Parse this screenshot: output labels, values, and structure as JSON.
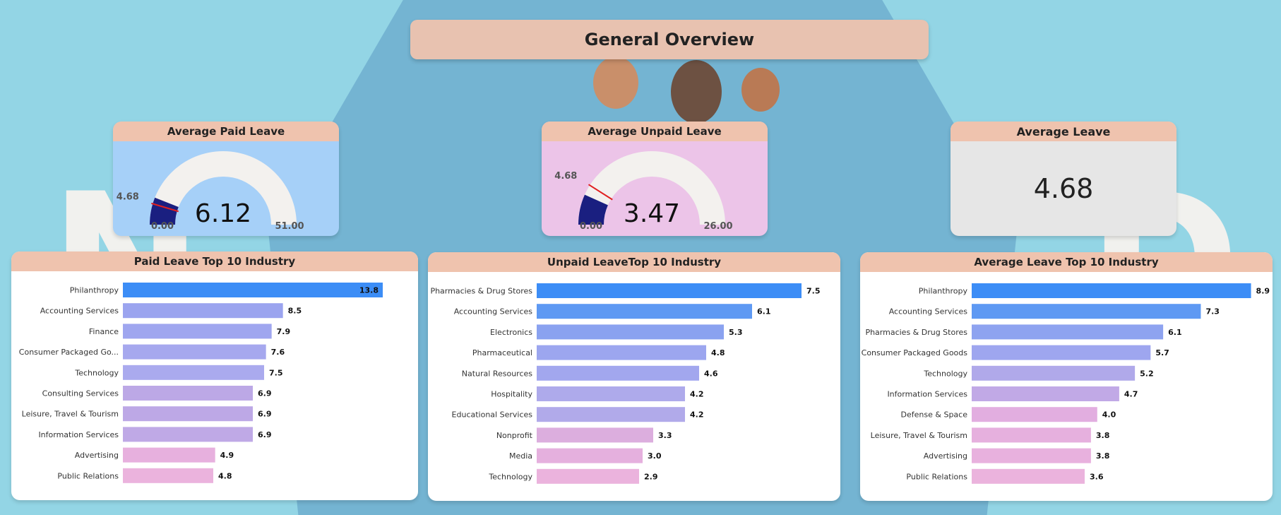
{
  "title": "General Overview",
  "colors": {
    "page_bg": "#93d5e5",
    "header": "#efc3ae",
    "gauge_fill": "#1a1f80",
    "gauge_track": "#f3f1ee",
    "target_line": "#e02020",
    "paid_card_bg": "#a6d0f8",
    "unpaid_card_bg": "#ecc4e8",
    "avg_card_bg": "#e6e6e6"
  },
  "gauges": [
    {
      "id": "paid",
      "title": "Average Paid Leave",
      "value": 6.12,
      "value_label": "6.12",
      "min": 0,
      "max": 51,
      "min_label": "0.00",
      "max_label": "51.00",
      "target": 4.68,
      "target_label": "4.68"
    },
    {
      "id": "unpaid",
      "title": "Average Unpaid Leave",
      "value": 3.47,
      "value_label": "3.47",
      "min": 0,
      "max": 26,
      "min_label": "0.00",
      "max_label": "26.00",
      "target": 4.68,
      "target_label": "4.68"
    }
  ],
  "kpi": {
    "title": "Average Leave",
    "value": "4.68"
  },
  "chart_data": [
    {
      "type": "bar",
      "orientation": "horizontal",
      "title": "Paid Leave Top 10 Industry",
      "xlim": [
        0,
        15
      ],
      "categories": [
        "Philanthropy",
        "Accounting Services",
        "Finance",
        "Consumer Packaged Go...",
        "Technology",
        "Consulting Services",
        "Leisure, Travel & Tourism",
        "Information Services",
        "Advertising",
        "Public Relations"
      ],
      "values": [
        13.8,
        8.5,
        7.9,
        7.6,
        7.5,
        6.9,
        6.9,
        6.9,
        4.9,
        4.8
      ],
      "labels": [
        "13.8",
        "8.5",
        "7.9",
        "7.6",
        "7.5",
        "6.9",
        "6.9",
        "6.9",
        "4.9",
        "4.8"
      ],
      "colors": [
        "#3c8df6",
        "#9ba4ef",
        "#9fa6ef",
        "#a6a8ee",
        "#aaaaee",
        "#bca8e6",
        "#bda8e6",
        "#bfa9e6",
        "#e7b0de",
        "#ebb3dd"
      ]
    },
    {
      "type": "bar",
      "orientation": "horizontal",
      "title": "Unpaid LeaveTop 10 Industry",
      "xlim": [
        0,
        8
      ],
      "categories": [
        "Pharmacies & Drug Stores",
        "Accounting Services",
        "Electronics",
        "Pharmaceutical",
        "Natural Resources",
        "Hospitality",
        "Educational Services",
        "Nonprofit",
        "Media",
        "Technology"
      ],
      "values": [
        7.5,
        6.1,
        5.3,
        4.8,
        4.6,
        4.2,
        4.2,
        3.3,
        3.0,
        2.9
      ],
      "labels": [
        "7.5",
        "6.1",
        "5.3",
        "4.8",
        "4.6",
        "4.2",
        "4.2",
        "3.3",
        "3.0",
        "2.9"
      ],
      "colors": [
        "#3c8df6",
        "#5e99f3",
        "#8aa2f0",
        "#9ca6ef",
        "#a2a7ee",
        "#aeaaeb",
        "#b1aaea",
        "#dcaede",
        "#e5b0de",
        "#ebb3dd"
      ]
    },
    {
      "type": "bar",
      "orientation": "horizontal",
      "title": "Average Leave Top 10 Industry",
      "xlim": [
        0,
        9
      ],
      "categories": [
        "Philanthropy",
        "Accounting Services",
        "Pharmacies & Drug Stores",
        "Consumer Packaged Goods",
        "Technology",
        "Information Services",
        "Defense & Space",
        "Leisure, Travel & Tourism",
        "Advertising",
        "Public Relations"
      ],
      "values": [
        8.9,
        7.3,
        6.1,
        5.7,
        5.2,
        4.7,
        4.0,
        3.8,
        3.8,
        3.6
      ],
      "labels": [
        "8.9",
        "7.3",
        "6.1",
        "5.7",
        "5.2",
        "4.7",
        "4.0",
        "3.8",
        "3.8",
        "3.6"
      ],
      "colors": [
        "#3c8df6",
        "#5e99f3",
        "#8ea3f0",
        "#9ea6ef",
        "#b0a9ea",
        "#c1a9e6",
        "#e2aee0",
        "#e6b0de",
        "#e8b1de",
        "#ebb3dd"
      ]
    }
  ]
}
